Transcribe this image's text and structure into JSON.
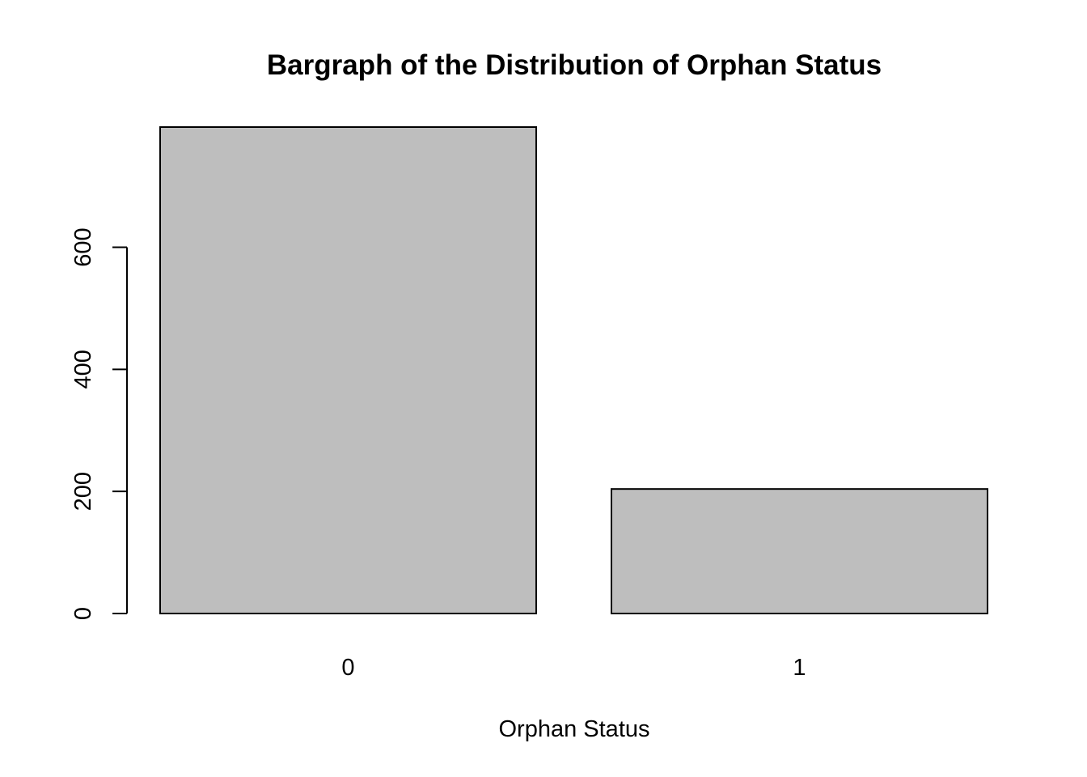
{
  "chart_data": {
    "type": "bar",
    "title": "Bargraph of the Distribution of Orphan Status",
    "xlabel": "Orphan Status",
    "ylabel": "",
    "categories": [
      "0",
      "1"
    ],
    "values": [
      797,
      204
    ],
    "ylim": [
      0,
      797
    ],
    "yticks": [
      0,
      200,
      400,
      600
    ],
    "grid": false,
    "legend": "none",
    "colors": {
      "bar_fill": "#bebebe",
      "bar_stroke": "#000000"
    }
  }
}
